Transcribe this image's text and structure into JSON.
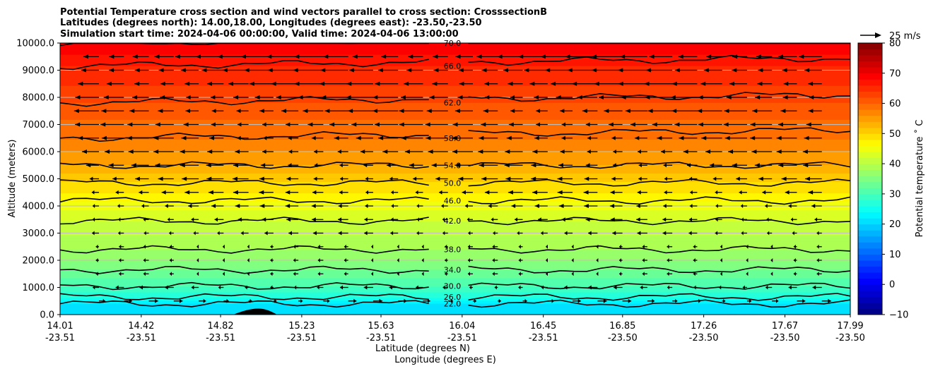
{
  "chart_data": {
    "type": "heatmap",
    "title_lines": [
      "Potential Temperature cross section and wind vectors parallel to cross section: CrosssectionB",
      "Latitudes (degrees north): 14.00,18.00, Longitudes (degrees east): -23.50,-23.50",
      "Simulation start time: 2024-04-06 00:00:00, Valid time: 2024-04-06 13:00:00"
    ],
    "xlabel_lat": "Latitude (degrees N)",
    "xlabel_lon": "Longitude (degrees E)",
    "ylabel": "Altitude (meters)",
    "x_ticks": [
      {
        "lat": "14.01",
        "lon": "-23.51"
      },
      {
        "lat": "14.42",
        "lon": "-23.51"
      },
      {
        "lat": "14.82",
        "lon": "-23.51"
      },
      {
        "lat": "15.23",
        "lon": "-23.51"
      },
      {
        "lat": "15.63",
        "lon": "-23.51"
      },
      {
        "lat": "16.04",
        "lon": "-23.51"
      },
      {
        "lat": "16.45",
        "lon": "-23.51"
      },
      {
        "lat": "16.85",
        "lon": "-23.50"
      },
      {
        "lat": "17.26",
        "lon": "-23.50"
      },
      {
        "lat": "17.67",
        "lon": "-23.50"
      },
      {
        "lat": "17.99",
        "lon": "-23.50"
      }
    ],
    "y_ticks": [
      "0.0",
      "1000.0",
      "2000.0",
      "3000.0",
      "4000.0",
      "5000.0",
      "6000.0",
      "7000.0",
      "8000.0",
      "9000.0",
      "10000.0"
    ],
    "ylim": [
      0,
      10000
    ],
    "grid": "horizontal",
    "contours": [
      {
        "level": 22,
        "label": "22.0",
        "alt": 400
      },
      {
        "level": 26,
        "label": "26.0",
        "alt": 650
      },
      {
        "level": 30,
        "label": "30.0",
        "alt": 1050
      },
      {
        "level": 34,
        "label": "34.0",
        "alt": 1650
      },
      {
        "level": 38,
        "label": "38.0",
        "alt": 2400
      },
      {
        "level": 42,
        "label": "42.0",
        "alt": 3450
      },
      {
        "level": 46,
        "label": "46.0",
        "alt": 4200
      },
      {
        "level": 50,
        "label": "50.0",
        "alt": 4850
      },
      {
        "level": 54,
        "label": "54.0",
        "alt": 5500
      },
      {
        "level": 58,
        "label": "58.0",
        "alt": 6500
      },
      {
        "level": 62,
        "label": "62.0",
        "alt": 7800
      },
      {
        "level": 66,
        "label": "66.0",
        "alt": 9150
      },
      {
        "level": 70,
        "label": "70.0",
        "alt": 10000
      }
    ],
    "colorbar": {
      "label": "Potential temperature ˚ C",
      "ticks": [
        "80",
        "70",
        "60",
        "50",
        "40",
        "30",
        "20",
        "10",
        "0",
        "−10"
      ],
      "range": [
        -10,
        80
      ],
      "colormap": "jet"
    },
    "vector_key_label": "25 m/s",
    "wind_direction": "southward aloft, weak northward near surface"
  }
}
